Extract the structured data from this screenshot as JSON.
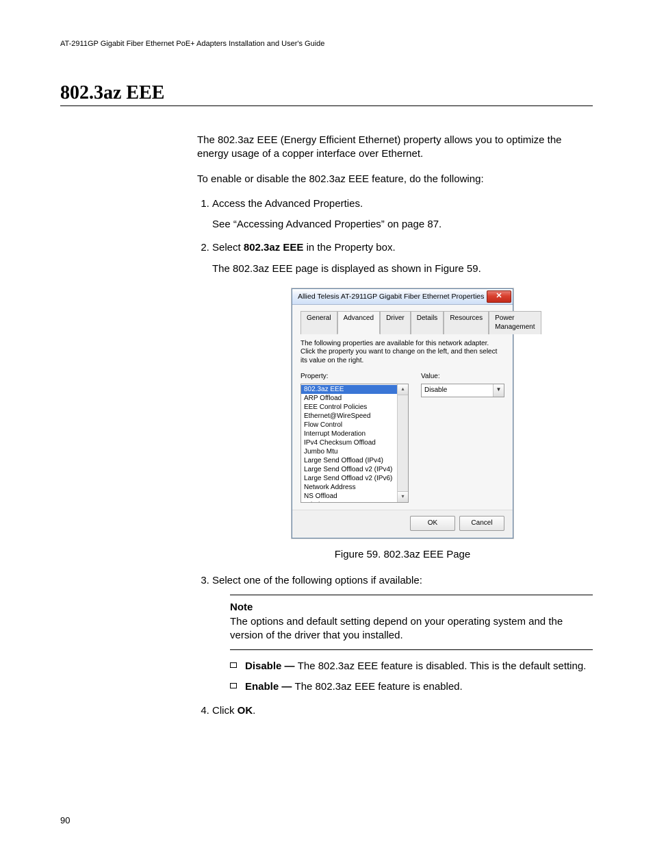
{
  "page": {
    "running_header": "AT-2911GP Gigabit Fiber Ethernet PoE+ Adapters Installation and User's Guide",
    "section_title": "802.3az EEE",
    "intro_p1": "The 802.3az EEE (Energy Efficient Ethernet) property allows you to optimize the energy usage of a copper interface over Ethernet.",
    "intro_p2": "To enable or disable the 802.3az EEE feature, do the following:",
    "step1": "Access the Advanced Properties.",
    "step1_sub": "See “Accessing Advanced Properties” on page 87.",
    "step2_pre": "Select ",
    "step2_bold": "802.3az EEE",
    "step2_post": " in the Property box.",
    "step2_sub": "The 802.3az EEE page is displayed as shown in Figure 59.",
    "figure_caption": "Figure 59. 802.3az EEE Page",
    "step3": "Select one of the following options if available:",
    "note_label": "Note",
    "note_body": "The options and default setting depend on your operating system and the version of the driver that you installed.",
    "opt_disable_bold": "Disable — ",
    "opt_disable_body": "The 802.3az EEE feature is disabled. This is the default setting.",
    "opt_enable_bold": "Enable — ",
    "opt_enable_body": "The 802.3az EEE feature is enabled.",
    "step4_pre": "Click ",
    "step4_bold": "OK",
    "step4_post": ".",
    "page_number": "90"
  },
  "dialog": {
    "title": "Allied Telesis AT-2911GP Gigabit Fiber Ethernet Properties",
    "tabs": {
      "general": "General",
      "advanced": "Advanced",
      "driver": "Driver",
      "details": "Details",
      "resources": "Resources",
      "power": "Power Management"
    },
    "description": "The following properties are available for this network adapter. Click the property you want to change on the left, and then select its value on the right.",
    "label_property": "Property:",
    "label_value": "Value:",
    "property_items": [
      "802.3az EEE",
      "ARP Offload",
      "EEE Control Policies",
      "Ethernet@WireSpeed",
      "Flow Control",
      "Interrupt Moderation",
      "IPv4 Checksum Offload",
      "Jumbo Mtu",
      "Large Send Offload (IPv4)",
      "Large Send Offload v2 (IPv4)",
      "Large Send Offload v2 (IPv6)",
      "Network Address",
      "NS Offload",
      "Priority & VLAN"
    ],
    "selected_property_index": 0,
    "value": "Disable",
    "ok": "OK",
    "cancel": "Cancel",
    "colors": {
      "titlebar_border": "#6b8aab",
      "close_bg": "#c22a1a",
      "selection_bg": "#3a76d6"
    }
  }
}
